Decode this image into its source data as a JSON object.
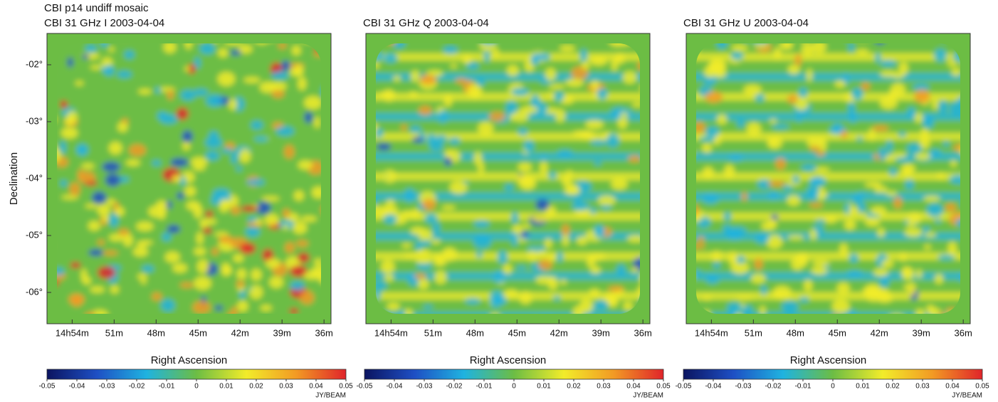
{
  "chart_data": [
    {
      "type": "heatmap",
      "title": "CBI p14 undiff mosaic",
      "subtitle": "CBI 31 GHz  I  2003-04-04",
      "xlabel": "Right Ascension",
      "ylabel": "Declination",
      "xlim": [
        55.8,
        35.5
      ],
      "xticks": [
        {
          "value": 54,
          "label": "14h54m"
        },
        {
          "value": 51,
          "label": "51m"
        },
        {
          "value": 48,
          "label": "48m"
        },
        {
          "value": 45,
          "label": "45m"
        },
        {
          "value": 42,
          "label": "42m"
        },
        {
          "value": 39,
          "label": "39m"
        },
        {
          "value": 36,
          "label": "36m"
        }
      ],
      "ylim": [
        -6.55,
        -1.45
      ],
      "yticks": [
        {
          "value": -2,
          "label": "-02°"
        },
        {
          "value": -3,
          "label": "-03°"
        },
        {
          "value": -4,
          "label": "-04°"
        },
        {
          "value": -5,
          "label": "-05°"
        },
        {
          "value": -6,
          "label": "-06°"
        }
      ],
      "colorbar_lim": [
        -0.05,
        0.05
      ],
      "colorbar_ticks": [
        -0.05,
        -0.04,
        -0.03,
        -0.02,
        -0.01,
        0,
        0.01,
        0.02,
        0.03,
        0.04,
        0.05
      ],
      "colorbar_unit": "JY/BEAM",
      "colormap": [
        "#0b1460",
        "#1e4fc4",
        "#1fb3e0",
        "#6cbd44",
        "#f2ec2a",
        "#f29a24",
        "#e0242a"
      ]
    },
    {
      "type": "heatmap",
      "title": "CBI 31 GHz Q 2003-04-04",
      "xlabel": "Right Ascension",
      "xlim": [
        55.8,
        35.5
      ],
      "xticks": [
        {
          "value": 54,
          "label": "14h54m"
        },
        {
          "value": 51,
          "label": "51m"
        },
        {
          "value": 48,
          "label": "48m"
        },
        {
          "value": 45,
          "label": "45m"
        },
        {
          "value": 42,
          "label": "42m"
        },
        {
          "value": 39,
          "label": "39m"
        },
        {
          "value": 36,
          "label": "36m"
        }
      ],
      "ylim": [
        -6.55,
        -1.45
      ],
      "colorbar_lim": [
        -0.05,
        0.05
      ],
      "colorbar_ticks": [
        -0.05,
        -0.04,
        -0.03,
        -0.02,
        -0.01,
        0,
        0.01,
        0.02,
        0.03,
        0.04,
        0.05
      ],
      "colorbar_unit": "JY/BEAM",
      "colormap": [
        "#0b1460",
        "#1e4fc4",
        "#1fb3e0",
        "#6cbd44",
        "#f2ec2a",
        "#f29a24",
        "#e0242a"
      ]
    },
    {
      "type": "heatmap",
      "title": "CBI 31 GHz U 2003-04-04",
      "xlabel": "Right Ascension",
      "xlim": [
        55.8,
        35.5
      ],
      "xticks": [
        {
          "value": 54,
          "label": "14h54m"
        },
        {
          "value": 51,
          "label": "51m"
        },
        {
          "value": 48,
          "label": "48m"
        },
        {
          "value": 45,
          "label": "45m"
        },
        {
          "value": 42,
          "label": "42m"
        },
        {
          "value": 39,
          "label": "39m"
        },
        {
          "value": 36,
          "label": "36m"
        }
      ],
      "ylim": [
        -6.55,
        -1.45
      ],
      "colorbar_lim": [
        -0.05,
        0.05
      ],
      "colorbar_ticks": [
        -0.05,
        -0.04,
        -0.03,
        -0.02,
        -0.01,
        0,
        0.01,
        0.02,
        0.03,
        0.04,
        0.05
      ],
      "colorbar_unit": "JY/BEAM",
      "colormap": [
        "#0b1460",
        "#1e4fc4",
        "#1fb3e0",
        "#6cbd44",
        "#f2ec2a",
        "#f29a24",
        "#e0242a"
      ]
    }
  ]
}
